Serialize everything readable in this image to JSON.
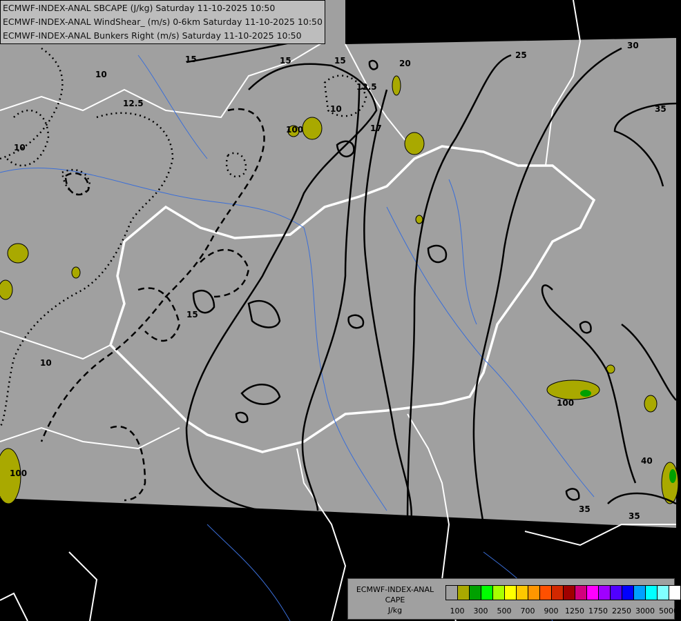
{
  "titles": [
    "ECMWF-INDEX-ANAL SBCAPE (J/kg) Saturday 11-10-2025 10:50",
    "ECMWF-INDEX-ANAL WindShear_ (m/s) 0-6km Saturday 11-10-2025 10:50",
    "ECMWF-INDEX-ANAL Bunkers Right (m/s) Saturday 11-10-2025 10:50"
  ],
  "legend": {
    "title_lines": [
      "ECMWF-INDEX-ANAL",
      "CAPE",
      "J/kg"
    ],
    "colors": [
      "#a0a0a0",
      "#a9a900",
      "#00a000",
      "#00ff00",
      "#a8ff00",
      "#ffff00",
      "#ffc800",
      "#ff9600",
      "#ff5000",
      "#d22800",
      "#a00000",
      "#d2007d",
      "#ff00ff",
      "#a000ff",
      "#5000ff",
      "#0000ff",
      "#00a0ff",
      "#00ffff",
      "#80ffff",
      "#ffffff"
    ],
    "tick_labels": [
      "100",
      "300",
      "500",
      "700",
      "900",
      "1250",
      "1750",
      "2250",
      "3000",
      "5000"
    ]
  },
  "contour_labels": {
    "shear": [
      "15",
      "15",
      "15",
      "25",
      "30",
      "35",
      "40",
      "35",
      "35",
      "17",
      "20"
    ],
    "bunkers": [
      "10",
      "12.5",
      "10",
      "10",
      "12.5",
      "10",
      "15"
    ],
    "cape": [
      "100",
      "100",
      "100"
    ]
  },
  "colors": {
    "domain": "#a0a0a0",
    "outside": "#000000",
    "borders": "#ffffff",
    "rivers": "#3a6ed8",
    "cape_low": "#a9a900"
  }
}
